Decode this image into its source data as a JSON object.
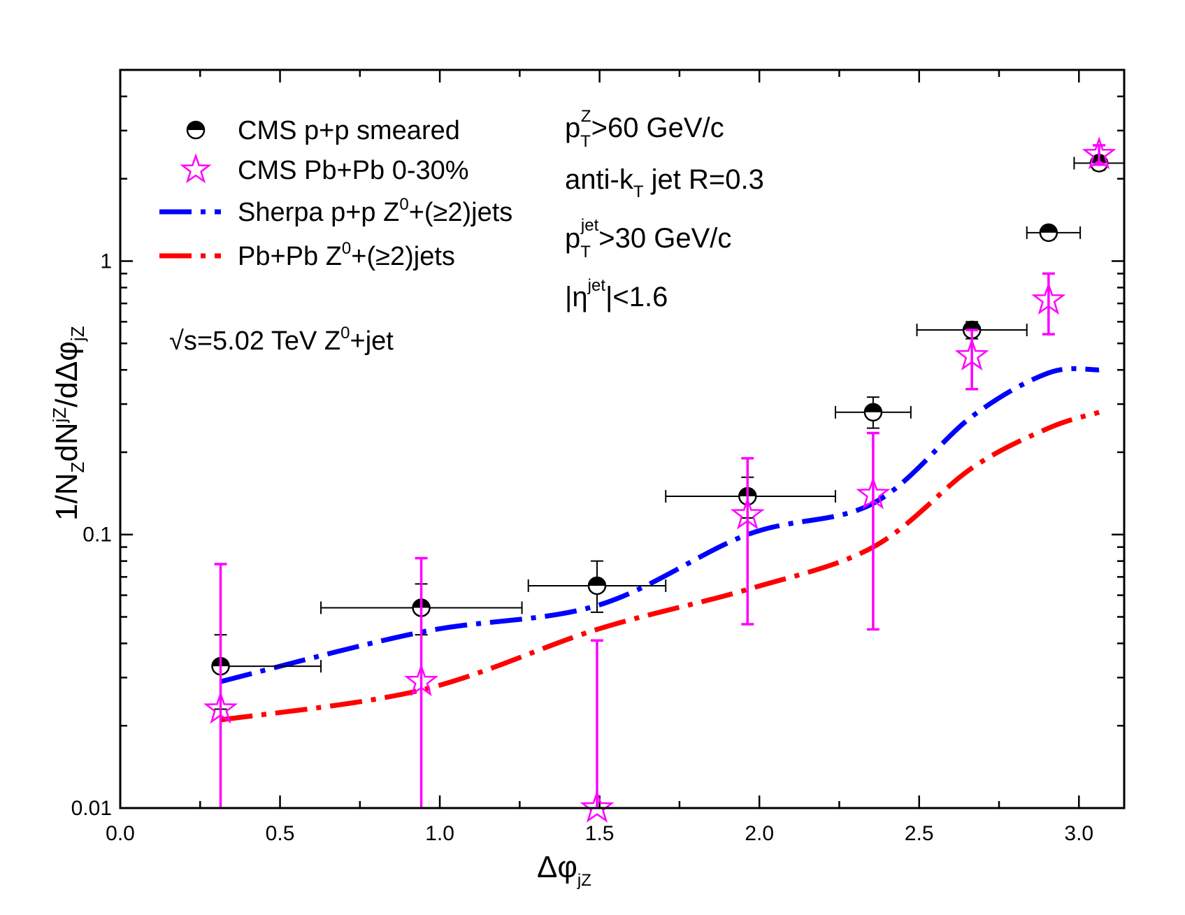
{
  "chart_data": {
    "type": "line",
    "title": "",
    "xlabel": {
      "main": "Δφ",
      "sub": "jZ"
    },
    "ylabel": {
      "p1": "1/N",
      "s1": "Z",
      "p2": "dN",
      "s2": "jZ",
      "p3": "/dΔφ",
      "s3": "jZ"
    },
    "xlim": [
      0.0,
      3.14159
    ],
    "ylim": [
      0.01,
      5.0
    ],
    "yscale": "log",
    "legend_position": "top-left",
    "x_ticks": [
      {
        "v": 0.0,
        "label": "0.0"
      },
      {
        "v": 0.5,
        "label": "0.5"
      },
      {
        "v": 1.0,
        "label": "1.0"
      },
      {
        "v": 1.5,
        "label": "1.5"
      },
      {
        "v": 2.0,
        "label": "2.0"
      },
      {
        "v": 2.5,
        "label": "2.5"
      },
      {
        "v": 3.0,
        "label": "3.0"
      }
    ],
    "y_ticks": [
      {
        "v": 0.01,
        "label": "0.01"
      },
      {
        "v": 0.1,
        "label": "0.1"
      },
      {
        "v": 1,
        "label": "1"
      }
    ],
    "series": [
      {
        "name": "CMS p+p smeared",
        "kind": "points",
        "marker": "half-filled-circle",
        "color": "#000000",
        "points": [
          {
            "x": 0.314,
            "y": 0.033,
            "xerr": [
              0.314,
              0.628
            ],
            "yerr": [
              0.023,
              0.043
            ]
          },
          {
            "x": 0.942,
            "y": 0.054,
            "xerr": [
              0.628,
              1.257
            ],
            "yerr": [
              0.043,
              0.066
            ]
          },
          {
            "x": 1.492,
            "y": 0.065,
            "xerr": [
              1.277,
              1.707
            ],
            "yerr": [
              0.052,
              0.08
            ]
          },
          {
            "x": 1.963,
            "y": 0.138,
            "xerr": [
              1.707,
              2.238
            ],
            "yerr": [
              0.115,
              0.162
            ]
          },
          {
            "x": 2.356,
            "y": 0.28,
            "xerr": [
              2.238,
              2.474
            ],
            "yerr": [
              0.245,
              0.318
            ]
          },
          {
            "x": 2.665,
            "y": 0.56,
            "xerr": [
              2.493,
              2.837
            ],
            "yerr": [
              0.52,
              0.6
            ]
          },
          {
            "x": 2.905,
            "y": 1.27,
            "xerr": [
              2.837,
              3.004
            ],
            "yerr": [
              1.2,
              1.34
            ]
          },
          {
            "x": 3.063,
            "y": 2.28,
            "xerr": [
              2.985,
              3.142
            ],
            "yerr": [
              2.15,
              2.41
            ]
          }
        ]
      },
      {
        "name": "CMS Pb+Pb 0-30%",
        "kind": "points",
        "marker": "open-star",
        "color": "#ff00ff",
        "points": [
          {
            "x": 0.314,
            "y": 0.023,
            "yerr": [
              0.0001,
              0.078
            ]
          },
          {
            "x": 0.942,
            "y": 0.029,
            "yerr": [
              0.0001,
              0.082
            ]
          },
          {
            "x": 1.492,
            "y": 0.01,
            "yerr": [
              0.0001,
              0.041
            ]
          },
          {
            "x": 1.963,
            "y": 0.118,
            "yerr": [
              0.047,
              0.19
            ]
          },
          {
            "x": 2.356,
            "y": 0.14,
            "yerr": [
              0.045,
              0.235
            ]
          },
          {
            "x": 2.665,
            "y": 0.45,
            "yerr": [
              0.34,
              0.56
            ]
          },
          {
            "x": 2.905,
            "y": 0.72,
            "yerr": [
              0.54,
              0.9
            ]
          },
          {
            "x": 3.063,
            "y": 2.45,
            "yerr": [
              2.25,
              2.65
            ]
          }
        ]
      },
      {
        "name": "Sherpa p+p Z",
        "kind": "line",
        "style": "dash-dot",
        "color": "#0000ff",
        "points": [
          {
            "x": 0.314,
            "y": 0.029
          },
          {
            "x": 0.942,
            "y": 0.044
          },
          {
            "x": 1.492,
            "y": 0.055
          },
          {
            "x": 1.963,
            "y": 0.1
          },
          {
            "x": 2.356,
            "y": 0.13
          },
          {
            "x": 2.665,
            "y": 0.27
          },
          {
            "x": 2.905,
            "y": 0.39
          },
          {
            "x": 3.063,
            "y": 0.4
          }
        ]
      },
      {
        "name": "Pb+Pb Z",
        "kind": "line",
        "style": "dash-dot",
        "color": "#ff0000",
        "points": [
          {
            "x": 0.314,
            "y": 0.021
          },
          {
            "x": 0.942,
            "y": 0.027
          },
          {
            "x": 1.492,
            "y": 0.045
          },
          {
            "x": 1.963,
            "y": 0.063
          },
          {
            "x": 2.356,
            "y": 0.09
          },
          {
            "x": 2.665,
            "y": 0.175
          },
          {
            "x": 2.905,
            "y": 0.245
          },
          {
            "x": 3.063,
            "y": 0.28
          }
        ]
      }
    ],
    "legend": {
      "pp_data": "CMS p+p smeared",
      "pbpb_data": "CMS Pb+Pb 0-30%",
      "sherpa_a": "Sherpa p+p Z",
      "sherpa_sup": "0",
      "sherpa_b": "+(≥2)jets",
      "pbpb_model_a": "Pb+Pb  Z",
      "pbpb_model_sup": "0",
      "pbpb_model_b": "+(≥2)jets"
    },
    "annotations": {
      "energy_a": "√s=5.02 TeV  Z",
      "energy_sup": "0",
      "energy_b": "+jet",
      "ptz_p": "p",
      "ptz_sub": "T",
      "ptz_sup": "Z",
      "ptz_rest": ">60 GeV/c",
      "jet_a": "anti-k",
      "jet_sub": "T",
      "jet_b": " jet   R=0.3",
      "ptjet_p": "p",
      "ptjet_sub": "T",
      "ptjet_sup": "jet",
      "ptjet_rest": ">30 GeV/c",
      "eta_a": "|η",
      "eta_sup": "jet",
      "eta_b": "|<1.6"
    }
  }
}
